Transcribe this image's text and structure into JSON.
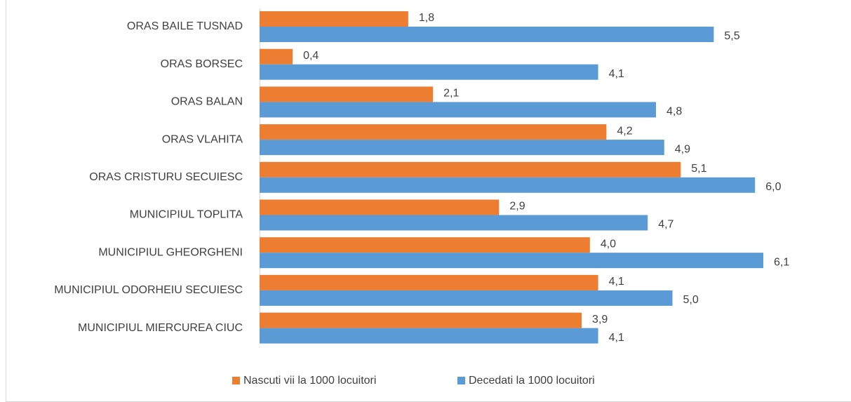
{
  "chart_data": {
    "type": "bar",
    "orientation": "horizontal",
    "categories": [
      "ORAS BAILE TUSNAD",
      "ORAS BORSEC",
      "ORAS BALAN",
      "ORAS VLAHITA",
      "ORAS CRISTURU SECUIESC",
      "MUNICIPIUL  TOPLITA",
      "MUNICIPIUL  GHEORGHENI",
      "MUNICIPIUL ODORHEIU SECUIESC",
      "MUNICIPIUL MIERCUREA CIUC"
    ],
    "series": [
      {
        "name": "Nascuti vii la 1000 locuitori",
        "color": "#ed7d31",
        "values": [
          1.8,
          0.4,
          2.1,
          4.2,
          5.1,
          2.9,
          4.0,
          4.1,
          3.9
        ],
        "value_labels": [
          "1,8",
          "0,4",
          "2,1",
          "4,2",
          "5,1",
          "2,9",
          "4,0",
          "4,1",
          "3,9"
        ]
      },
      {
        "name": "Decedati la 1000 locuitori",
        "color": "#5b9bd5",
        "values": [
          5.5,
          4.1,
          4.8,
          4.9,
          6.0,
          4.7,
          6.1,
          5.0,
          4.1
        ],
        "value_labels": [
          "5,5",
          "4,1",
          "4,8",
          "4,9",
          "6,0",
          "4,7",
          "6,1",
          "5,0",
          "4,1"
        ]
      }
    ],
    "legend": "bottom"
  }
}
